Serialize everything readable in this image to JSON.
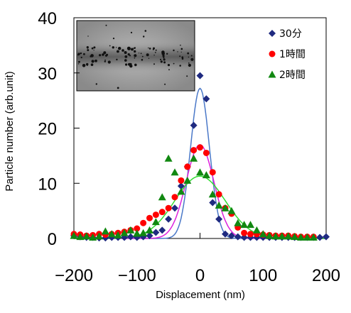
{
  "chart_data": {
    "type": "scatter",
    "title": "",
    "xlabel": "Displacement (nm)",
    "ylabel": "Particle number (arb.unit)",
    "xlim": [
      -200,
      200
    ],
    "ylim": [
      0,
      40
    ],
    "x_ticks": [
      -200,
      -100,
      0,
      100,
      200
    ],
    "y_ticks": [
      0,
      10,
      20,
      30,
      40
    ],
    "x_tick_labels": [
      "−200",
      "−100",
      "0",
      "100",
      "200"
    ],
    "y_tick_labels": [
      "0",
      "10",
      "20",
      "30",
      "40"
    ],
    "legend_position": "top-right",
    "inset": "micrograph showing a horizontal band of dark particles",
    "series": [
      {
        "name": "30分",
        "marker": "diamond",
        "color": "#1f2a80",
        "x": [
          -200,
          -190,
          -180,
          -170,
          -160,
          -150,
          -140,
          -130,
          -120,
          -110,
          -100,
          -90,
          -80,
          -70,
          -60,
          -50,
          -40,
          -30,
          -20,
          -10,
          0,
          10,
          20,
          30,
          40,
          50,
          60,
          70,
          80,
          90,
          100,
          110,
          120,
          130,
          140,
          150,
          160,
          170,
          180,
          190,
          200
        ],
        "y": [
          0.5,
          0.3,
          0.2,
          0.2,
          0.1,
          0.1,
          0.2,
          0.2,
          0.2,
          0.3,
          0.2,
          0.3,
          0.5,
          1.1,
          1.5,
          3.5,
          5.5,
          9.5,
          13,
          20.5,
          29.5,
          25.3,
          6.5,
          3.5,
          0.8,
          0.5,
          0.3,
          0.2,
          0.2,
          0.2,
          0.2,
          0.2,
          0.2,
          0.2,
          0.2,
          0.2,
          0.2,
          0.2,
          0.2,
          0.2,
          0.3
        ],
        "fit_color": "#4a78c8",
        "fit": {
          "amplitude": 27.2,
          "center": 0,
          "sigma": 15
        }
      },
      {
        "name": "1時間",
        "marker": "circle",
        "color": "#ff0000",
        "x": [
          -200,
          -190,
          -180,
          -170,
          -160,
          -150,
          -140,
          -130,
          -120,
          -110,
          -100,
          -90,
          -80,
          -70,
          -60,
          -50,
          -40,
          -30,
          -20,
          -10,
          0,
          10,
          20,
          30,
          40,
          50,
          60,
          70,
          80,
          90,
          100,
          110,
          120,
          130,
          140,
          150,
          160,
          170,
          180
        ],
        "y": [
          0.8,
          0.7,
          0.5,
          0.6,
          0.8,
          0.7,
          0.8,
          1.0,
          1.2,
          1.5,
          1.8,
          2.8,
          3.7,
          4.3,
          4.8,
          5.5,
          7.5,
          10.5,
          13,
          16,
          16.5,
          15.5,
          12,
          8,
          5.5,
          4.5,
          2,
          1,
          0.8,
          0.8,
          0.7,
          0.6,
          0.5,
          0.5,
          0.5,
          0.4,
          0.3,
          0.3,
          0.3
        ],
        "fit_color": "#dd22dd",
        "fit": {
          "amplitude": 17,
          "center": 0,
          "sigma": 22
        }
      },
      {
        "name": "2時間",
        "marker": "triangle",
        "color": "#118811",
        "x": [
          -200,
          -190,
          -180,
          -170,
          -160,
          -150,
          -140,
          -130,
          -120,
          -110,
          -100,
          -90,
          -80,
          -70,
          -60,
          -50,
          -40,
          -30,
          -20,
          -10,
          0,
          10,
          20,
          30,
          40,
          50,
          60,
          70,
          80,
          90,
          100,
          110,
          120,
          130,
          140,
          150,
          160,
          170,
          180
        ],
        "y": [
          0.5,
          0.3,
          0.4,
          0.2,
          0.4,
          1.3,
          0.8,
          0.6,
          1.0,
          1.5,
          0.9,
          1.0,
          1.5,
          3.0,
          7.5,
          14.5,
          12,
          8.5,
          10.5,
          14.5,
          12,
          11.5,
          8,
          6,
          5.5,
          5,
          2.8,
          2.5,
          2.5,
          1.5,
          0.8,
          0.5,
          0.4,
          0.4,
          0.4,
          0.3,
          0.2,
          0.2,
          0.2
        ],
        "fit_color": "#33dd33",
        "fit": {
          "amplitude": 11.3,
          "center": 0,
          "sigma": 40
        }
      }
    ]
  }
}
